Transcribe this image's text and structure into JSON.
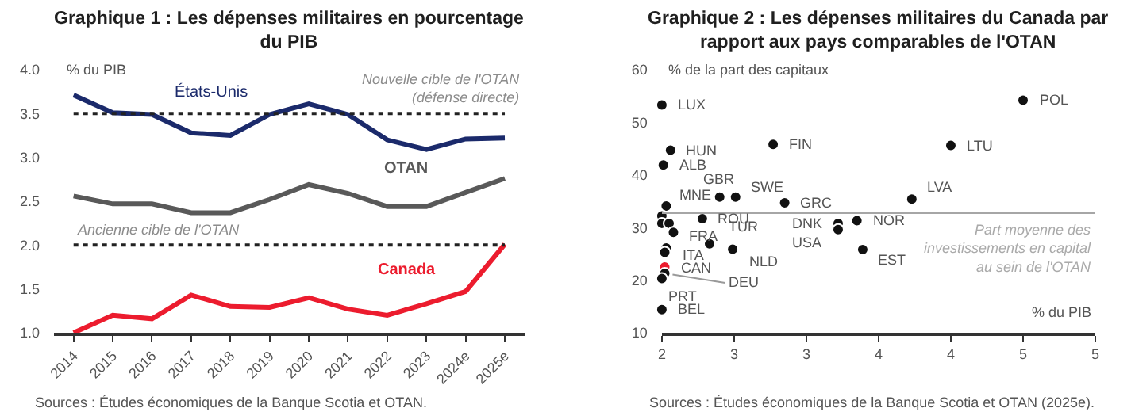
{
  "chart_data": [
    {
      "type": "line",
      "title": "Graphique 1 : Les dépenses militaires en pourcentage\ndu PIB",
      "ylabel": "% du PIB",
      "categories": [
        "2014",
        "2015",
        "2016",
        "2017",
        "2018",
        "2019",
        "2020",
        "2021",
        "2022",
        "2023",
        "2024e",
        "2025e"
      ],
      "series": [
        {
          "name": "États-Unis",
          "color": "#1b2a6b",
          "values": [
            3.71,
            3.51,
            3.49,
            3.28,
            3.25,
            3.49,
            3.61,
            3.49,
            3.2,
            3.09,
            3.21,
            3.22
          ]
        },
        {
          "name": "OTAN",
          "color": "#595959",
          "values": [
            2.56,
            2.47,
            2.47,
            2.37,
            2.37,
            2.52,
            2.69,
            2.59,
            2.44,
            2.44,
            2.6,
            2.76
          ]
        },
        {
          "name": "Canada",
          "color": "#ec1c2e",
          "values": [
            1.0,
            1.2,
            1.16,
            1.43,
            1.3,
            1.29,
            1.4,
            1.27,
            1.2,
            1.33,
            1.47,
            2.01
          ]
        }
      ],
      "ylim": [
        1.0,
        4.0
      ],
      "yticks": [
        {
          "value": 1.0,
          "label": "1.0"
        },
        {
          "value": 1.5,
          "label": "1.5"
        },
        {
          "value": 2.0,
          "label": "2.0"
        },
        {
          "value": 2.5,
          "label": "2.5"
        },
        {
          "value": 3.0,
          "label": "3.0"
        },
        {
          "value": 3.5,
          "label": "3.5"
        },
        {
          "value": 4.0,
          "label": "4.0"
        }
      ],
      "ref_lines": [
        {
          "axis": "y",
          "value": 3.5,
          "label": "Nouvelle cible de l'OTAN\n(défense directe)",
          "color": "#222222",
          "line_style": "dotted"
        },
        {
          "axis": "y",
          "value": 2.0,
          "label": "Ancienne cible de l'OTAN",
          "color": "#222222",
          "line_style": "dotted"
        }
      ],
      "annotations": [
        "Sources : Études économiques de la Banque Scotia et OTAN."
      ]
    },
    {
      "type": "scatter",
      "title": "Graphique 2 : Les dépenses militaires du Canada par\nrapport aux pays comparables de l'OTAN",
      "ylabel": "% de la part des capitaux",
      "xlabel": "% du PIB",
      "marker": "circle",
      "x": [
        2.0,
        2.06,
        2.01,
        2.77,
        2.4,
        2.51,
        2.03,
        2.85,
        2.28,
        2.0,
        2.0,
        2.05,
        2.08,
        2.03,
        2.02,
        2.02,
        2.02,
        2.0,
        2.0,
        2.33,
        2.49,
        3.22,
        3.22,
        3.35,
        3.39,
        3.73,
        4.0,
        4.5
      ],
      "values": [
        53.3,
        44.7,
        41.9,
        45.8,
        35.8,
        35.8,
        34.1,
        34.7,
        31.7,
        32.2,
        30.8,
        30.8,
        29.1,
        26.1,
        25.3,
        22.5,
        21.3,
        20.3,
        14.4,
        26.9,
        25.9,
        30.8,
        29.6,
        31.3,
        25.8,
        35.4,
        45.6,
        54.2
      ],
      "colors": [
        "#111111",
        "#111111",
        "#111111",
        "#111111",
        "#111111",
        "#111111",
        "#111111",
        "#111111",
        "#111111",
        "#111111",
        "#111111",
        "#111111",
        "#111111",
        "#111111",
        "#111111",
        "#ec1c2e",
        "#111111",
        "#111111",
        "#111111",
        "#111111",
        "#111111",
        "#111111",
        "#111111",
        "#111111",
        "#111111",
        "#111111",
        "#111111",
        "#111111"
      ],
      "xlim": [
        2,
        5
      ],
      "xticks": [
        2,
        {
          "value": 2.5,
          "label": "3"
        },
        3,
        {
          "value": 3.5,
          "label": "4"
        },
        4,
        {
          "value": 4.5,
          "label": "5"
        },
        5
      ],
      "ylim": [
        10,
        60
      ],
      "yticks": [
        10,
        20,
        30,
        40,
        50,
        60
      ],
      "ref_lines": [
        {
          "axis": "y",
          "value": 32.8,
          "label": "Part moyenne des\ninvestissements en capital\nau sein de l'OTAN",
          "color": "#a6a6a6",
          "line_style": "solid"
        }
      ],
      "annotations": [
        {
          "text": "LUX",
          "x": 2.0,
          "y": 53.3
        },
        {
          "text": "HUN",
          "x": 2.06,
          "y": 44.7
        },
        {
          "text": "ALB",
          "x": 2.01,
          "y": 41.9
        },
        {
          "text": "FIN",
          "x": 2.77,
          "y": 45.8
        },
        {
          "text": "GBR",
          "x": 2.4,
          "y": 35.8
        },
        {
          "text": "SWE",
          "x": 2.51,
          "y": 35.8
        },
        {
          "text": "MNE",
          "x": 2.03,
          "y": 34.1
        },
        {
          "text": "GRC",
          "x": 2.85,
          "y": 34.7
        },
        {
          "text": "ROU",
          "x": 2.28,
          "y": 31.7
        },
        {
          "text": "FRA",
          "x": 2.08,
          "y": 29.1
        },
        {
          "text": "ITA",
          "x": 2.03,
          "y": 26.1
        },
        {
          "text": "CAN",
          "x": 2.02,
          "y": 22.5
        },
        {
          "text": "DEU",
          "x": 2.02,
          "y": 21.3
        },
        {
          "text": "PRT",
          "x": 2.0,
          "y": 20.3
        },
        {
          "text": "BEL",
          "x": 2.0,
          "y": 14.4
        },
        {
          "text": "TUR",
          "x": 2.33,
          "y": 26.9
        },
        {
          "text": "NLD",
          "x": 2.49,
          "y": 25.9
        },
        {
          "text": "DNK",
          "x": 3.22,
          "y": 30.8
        },
        {
          "text": "USA",
          "x": 3.22,
          "y": 29.6
        },
        {
          "text": "NOR",
          "x": 3.35,
          "y": 31.3
        },
        {
          "text": "EST",
          "x": 3.39,
          "y": 25.8
        },
        {
          "text": "LVA",
          "x": 3.73,
          "y": 35.4
        },
        {
          "text": "LTU",
          "x": 4.0,
          "y": 45.6
        },
        {
          "text": "POL",
          "x": 4.5,
          "y": 54.2
        },
        "Sources : Études économiques de la Banque Scotia et OTAN (2025e)."
      ]
    }
  ]
}
